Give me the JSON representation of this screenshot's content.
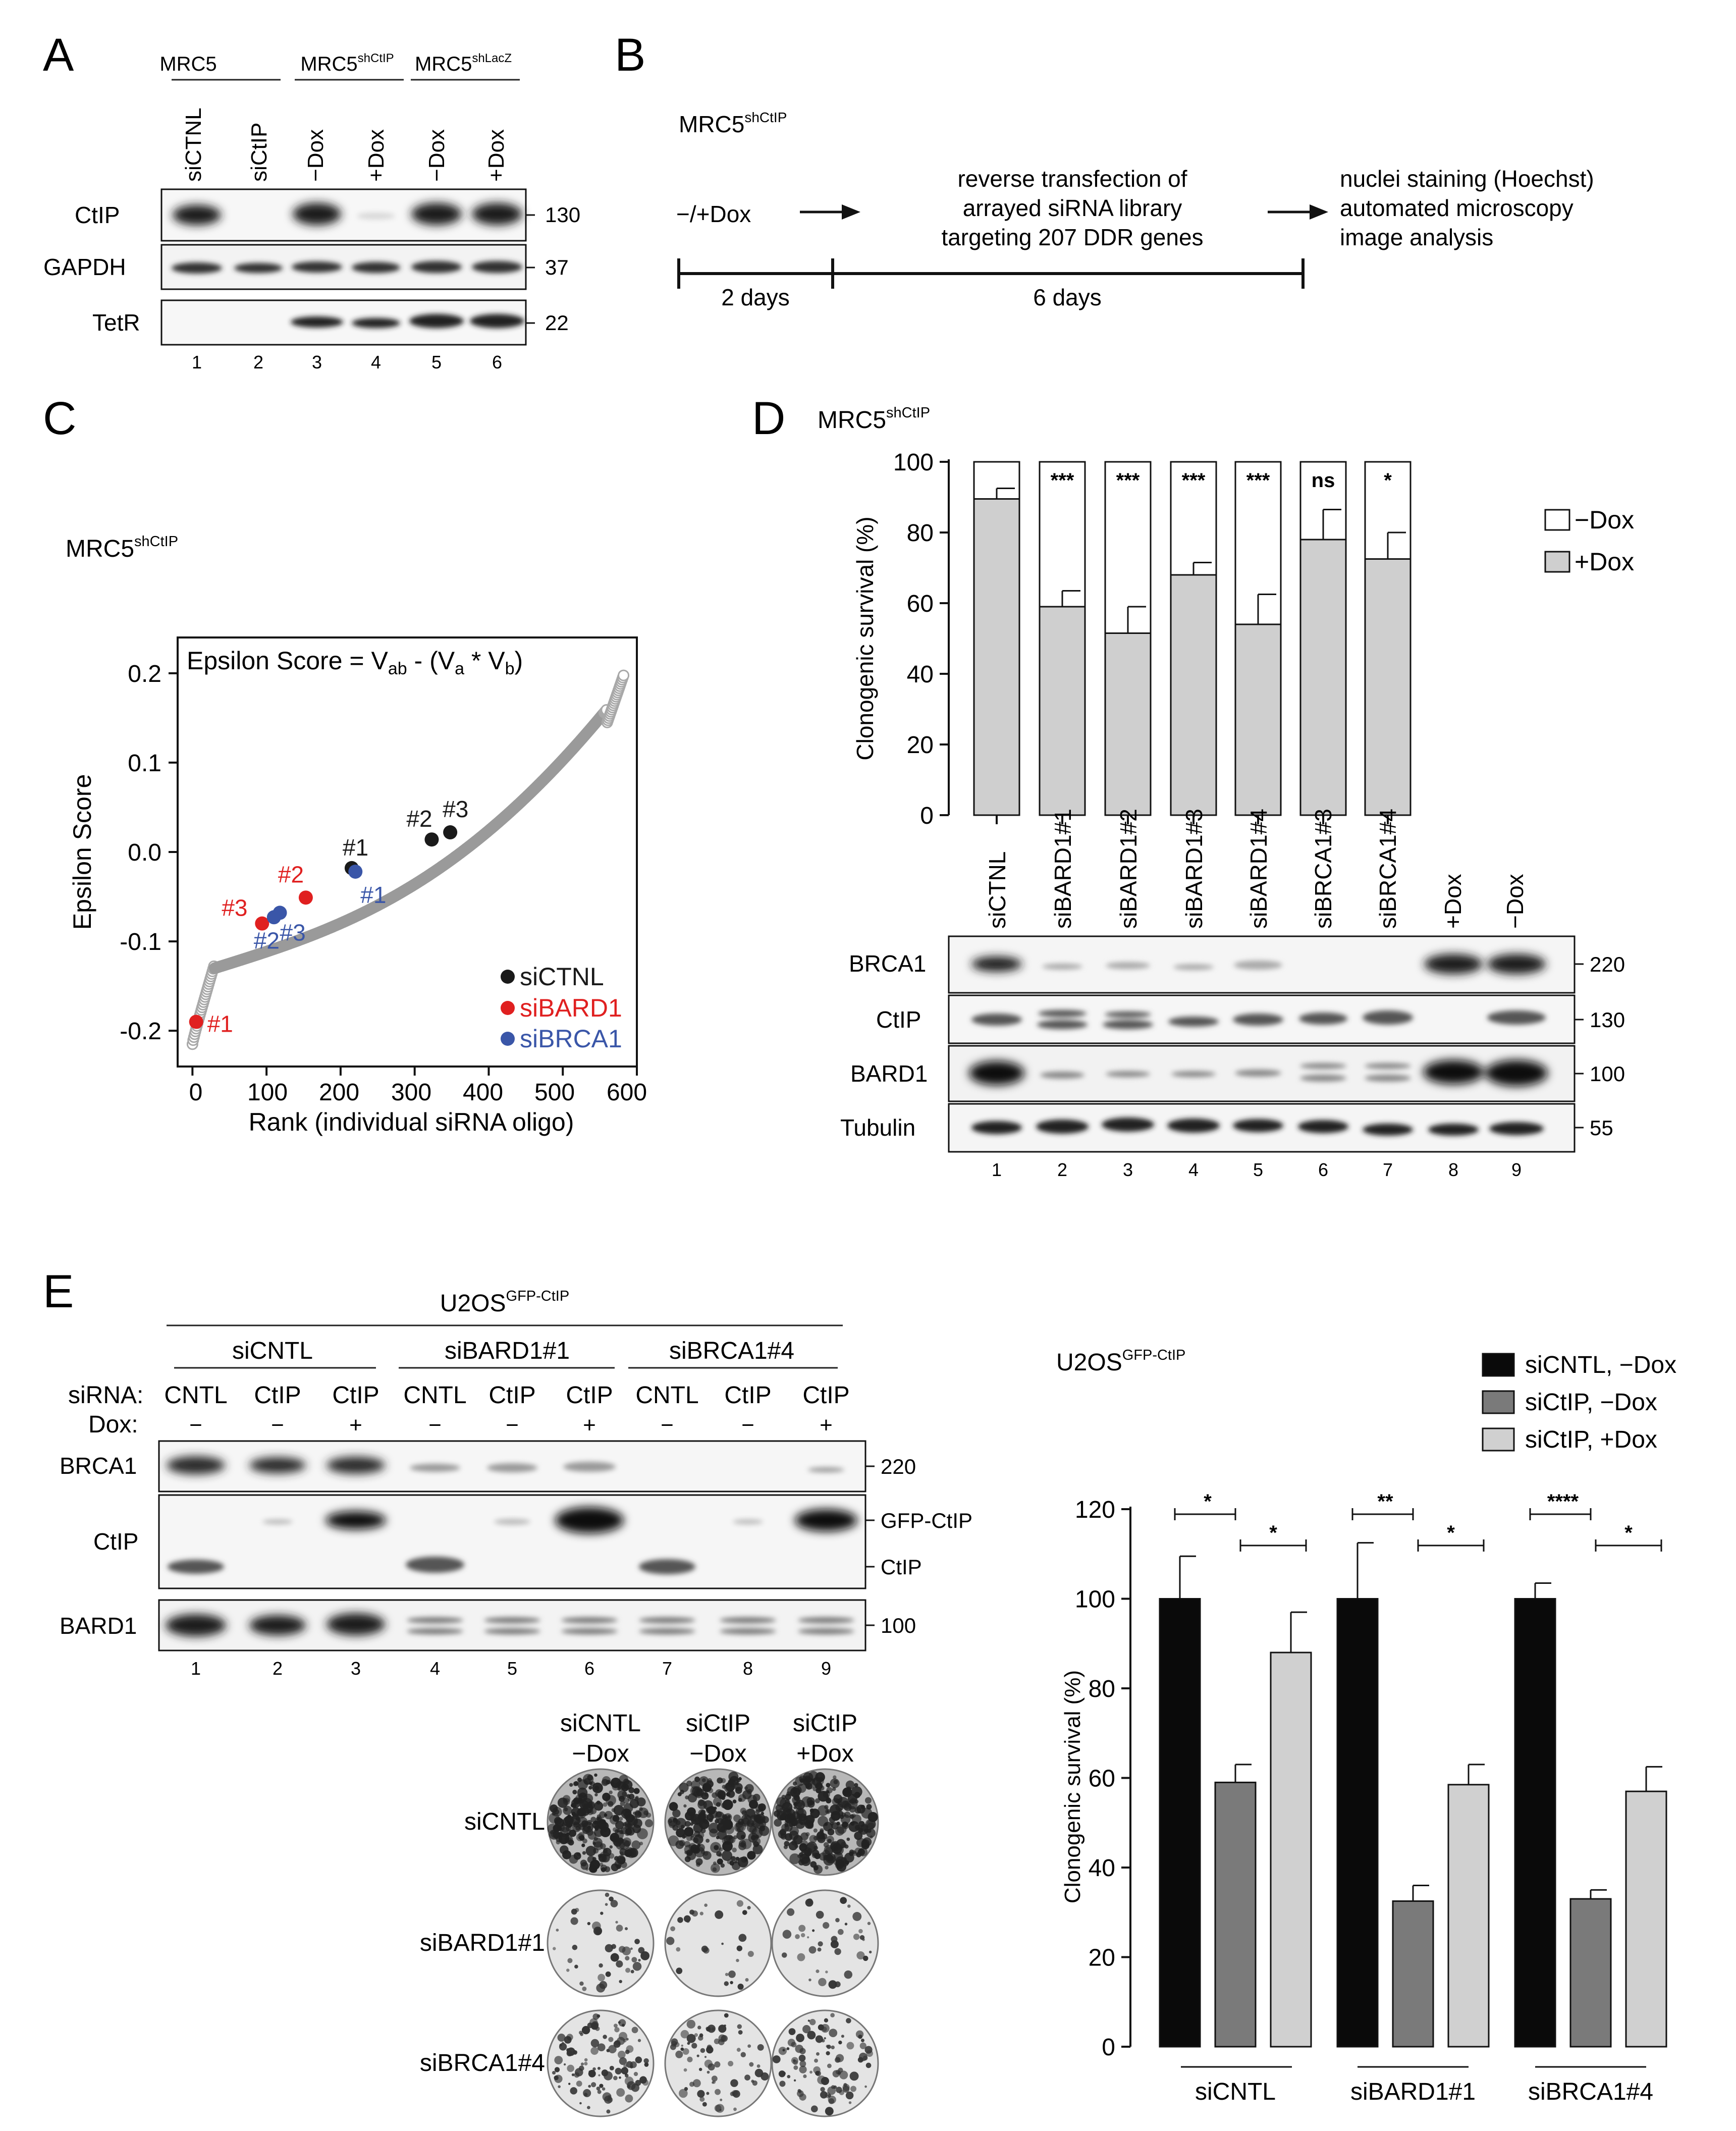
{
  "panels": {
    "A": "A",
    "B": "B",
    "C": "C",
    "D": "D",
    "E": "E"
  },
  "panelA": {
    "groups": [
      {
        "base": "MRC5",
        "sup": ""
      },
      {
        "base": "MRC5",
        "sup": "shCtIP"
      },
      {
        "base": "MRC5",
        "sup": "shLacZ"
      }
    ],
    "lanes": [
      "siCTNL",
      "siCtIP",
      "−Dox",
      "+Dox",
      "−Dox",
      "+Dox"
    ],
    "rows": [
      {
        "name": "CtIP",
        "mw": "130"
      },
      {
        "name": "GAPDH",
        "mw": "37"
      },
      {
        "name": "TetR",
        "mw": "22"
      }
    ],
    "lane_numbers": [
      "1",
      "2",
      "3",
      "4",
      "5",
      "6"
    ]
  },
  "panelB": {
    "cell_base": "MRC5",
    "cell_sup": "shCtIP",
    "step1": "−/+Dox",
    "step2": [
      "reverse transfection of",
      "arrayed siRNA library",
      "targeting 207 DDR genes"
    ],
    "step3": [
      "nuclei staining (Hoechst)",
      "automated microscopy",
      "image analysis"
    ],
    "duration1": "2 days",
    "duration2": "6 days"
  },
  "panelC": {
    "chart_data": {
      "type": "scatter",
      "title_base": "MRC5",
      "title_sup": "shCtIP",
      "formula": {
        "lhs": "Epsilon Score = V",
        "s1": "ab",
        "mid": " - (V",
        "s2": "a",
        "mid2": " * V",
        "s3": "b",
        "end": ")"
      },
      "xlabel": "Rank (individual siRNA oligo)",
      "ylabel": "Epsilon Score",
      "xlim": [
        -20,
        600
      ],
      "ylim": [
        -0.24,
        0.24
      ],
      "xticks": [
        "0",
        "100",
        "200",
        "300",
        "400",
        "500",
        "600"
      ],
      "yticks": [
        "-0.2",
        "-0.1",
        "0.0",
        "0.1",
        "0.2"
      ],
      "highlights": [
        {
          "group": "siCTNL",
          "label": "#1",
          "x": 215,
          "y": -0.018,
          "color": "#1a1a1a"
        },
        {
          "group": "siCTNL",
          "label": "#2",
          "x": 323,
          "y": 0.014,
          "color": "#1a1a1a"
        },
        {
          "group": "siCTNL",
          "label": "#3",
          "x": 348,
          "y": 0.022,
          "color": "#1a1a1a"
        },
        {
          "group": "siBARD1",
          "label": "#1",
          "x": 5,
          "y": -0.19,
          "color": "#e02020"
        },
        {
          "group": "siBARD1",
          "label": "#2",
          "x": 153,
          "y": -0.051,
          "color": "#e02020"
        },
        {
          "group": "siBARD1",
          "label": "#3",
          "x": 94,
          "y": -0.08,
          "color": "#e02020"
        },
        {
          "group": "siBRCA1",
          "label": "#1",
          "x": 220,
          "y": -0.022,
          "color": "#3a56a8"
        },
        {
          "group": "siBRCA1",
          "label": "#2",
          "x": 110,
          "y": -0.073,
          "color": "#3a56a8"
        },
        {
          "group": "siBRCA1",
          "label": "#3",
          "x": 118,
          "y": -0.068,
          "color": "#3a56a8"
        }
      ],
      "legend": [
        {
          "label": "siCTNL",
          "color": "#1a1a1a"
        },
        {
          "label": "siBARD1",
          "color": "#e02020"
        },
        {
          "label": "siBRCA1",
          "color": "#3a56a8"
        }
      ]
    }
  },
  "panelD": {
    "title_base": "MRC5",
    "title_sup": "shCtIP",
    "chart_data": {
      "type": "bar",
      "categories": [
        "siCTNL",
        "siBARD1#1",
        "siBARD1#2",
        "siBARD1#3",
        "siBARD1#4",
        "siBRCA1#3",
        "siBRCA1#4"
      ],
      "series": [
        {
          "name": "−Dox",
          "values": [
            100,
            100,
            100,
            100,
            100,
            100,
            100
          ]
        },
        {
          "name": "+Dox",
          "values": [
            89.5,
            59,
            51.5,
            68,
            54,
            78,
            72.5
          ]
        }
      ],
      "errors": [
        3,
        4.5,
        7.5,
        3.5,
        8.5,
        8.5,
        7.5
      ],
      "significance": [
        "",
        "***",
        "***",
        "***",
        "***",
        "ns",
        "*"
      ],
      "ylabel": "Clonogenic survival (%)",
      "ylim": [
        0,
        100
      ],
      "yticks": [
        "0",
        "20",
        "40",
        "60",
        "80",
        "100"
      ]
    },
    "blot_lanes": [
      "siCTNL",
      "siBARD1#1",
      "siBARD1#2",
      "siBARD1#3",
      "siBARD1#4",
      "siBRCA1#3",
      "siBRCA1#4",
      "+Dox",
      "−Dox"
    ],
    "rows": [
      {
        "name": "BRCA1",
        "mw": "220"
      },
      {
        "name": "CtIP",
        "mw": "130"
      },
      {
        "name": "BARD1",
        "mw": "100"
      },
      {
        "name": "Tubulin",
        "mw": "55"
      }
    ],
    "lane_numbers": [
      "1",
      "2",
      "3",
      "4",
      "5",
      "6",
      "7",
      "8",
      "9"
    ]
  },
  "panelE": {
    "cell_base": "U2OS",
    "cell_sup": "GFP-CtIP",
    "groups": [
      "siCNTL",
      "siBARD1#1",
      "siBRCA1#4"
    ],
    "sirna_label": "siRNA:",
    "dox_label": "Dox:",
    "sirna": [
      "CNTL",
      "CtIP",
      "CtIP",
      "CNTL",
      "CtIP",
      "CtIP",
      "CNTL",
      "CtIP",
      "CtIP"
    ],
    "dox": [
      "−",
      "−",
      "+",
      "−",
      "−",
      "+",
      "−",
      "−",
      "+"
    ],
    "rows": [
      {
        "name": "BRCA1",
        "mw": "220"
      },
      {
        "name": "CtIP",
        "mw": "GFP-CtIP",
        "mw2": "CtIP"
      },
      {
        "name": "BARD1",
        "mw": "100"
      }
    ],
    "lane_numbers": [
      "1",
      "2",
      "3",
      "4",
      "5",
      "6",
      "7",
      "8",
      "9"
    ],
    "plates": {
      "cols": [
        [
          "siCNTL",
          "−Dox"
        ],
        [
          "siCtIP",
          "−Dox"
        ],
        [
          "siCtIP",
          "+Dox"
        ]
      ],
      "rows": [
        "siCNTL",
        "siBARD1#1",
        "siBRCA1#4"
      ]
    },
    "chart_data": {
      "type": "bar",
      "title_base": "U2OS",
      "title_sup": "GFP-CtIP",
      "categories": [
        "siCNTL",
        "siBARD1#1",
        "siBRCA1#4"
      ],
      "series": [
        {
          "name": "siCNTL, −Dox",
          "color": "#0a0a0a",
          "values": [
            100,
            100,
            100
          ],
          "errors": [
            9.5,
            12.5,
            3.5
          ]
        },
        {
          "name": "siCtIP, −Dox",
          "color": "#7a7a7a",
          "values": [
            59,
            32.5,
            33
          ],
          "errors": [
            4,
            3.5,
            2
          ]
        },
        {
          "name": "siCtIP, +Dox",
          "color": "#d0d0d0",
          "values": [
            88,
            58.5,
            57
          ],
          "errors": [
            9,
            4.5,
            5.5
          ]
        }
      ],
      "significance": [
        [
          "*",
          "*"
        ],
        [
          "**",
          "*"
        ],
        [
          "****",
          "*"
        ]
      ],
      "ylabel": "Clonogenic survival (%)",
      "ylim": [
        0,
        120
      ],
      "yticks": [
        "0",
        "20",
        "40",
        "60",
        "80",
        "100",
        "120"
      ]
    }
  }
}
